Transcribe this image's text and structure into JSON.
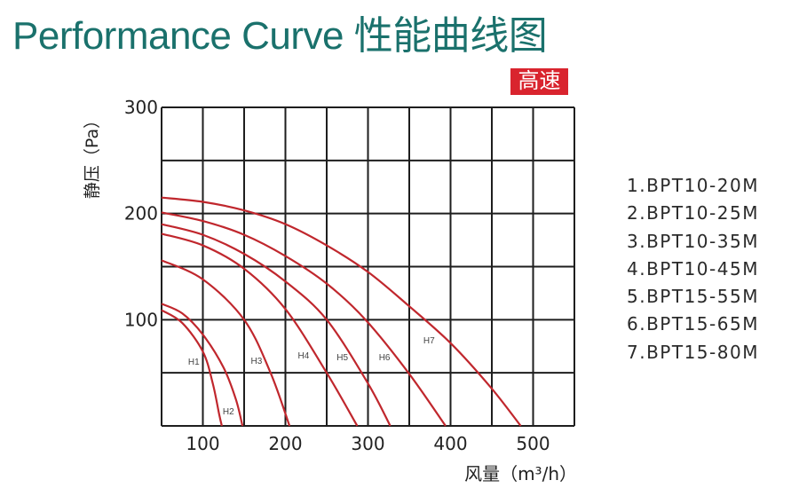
{
  "title": "Performance Curve 性能曲线图",
  "badge": "高速",
  "chart_data": {
    "type": "line",
    "title": "",
    "xlabel": "风量（m³/h）",
    "ylabel": "静压（Pa）",
    "xlim": [
      50,
      550
    ],
    "ylim": [
      0,
      300
    ],
    "x_ticks": [
      100,
      200,
      300,
      400,
      500
    ],
    "y_ticks": [
      100,
      200,
      300
    ],
    "grid": true,
    "grid_x_step": 50,
    "grid_y_step": 50,
    "line_color": "#c0272d",
    "series": [
      {
        "name": "H1",
        "label_at": [
          89,
          61
        ],
        "points": [
          [
            50,
            109
          ],
          [
            75,
            97
          ],
          [
            100,
            70
          ],
          [
            112,
            40
          ],
          [
            120,
            10
          ],
          [
            123,
            0
          ]
        ]
      },
      {
        "name": "H2",
        "label_at": [
          131,
          14
        ],
        "points": [
          [
            50,
            115
          ],
          [
            75,
            106
          ],
          [
            100,
            86
          ],
          [
            125,
            55
          ],
          [
            140,
            25
          ],
          [
            148,
            0
          ]
        ]
      },
      {
        "name": "H3",
        "label_at": [
          165,
          62
        ],
        "points": [
          [
            50,
            156
          ],
          [
            100,
            138
          ],
          [
            150,
            100
          ],
          [
            182,
            50
          ],
          [
            205,
            0
          ]
        ]
      },
      {
        "name": "H4",
        "label_at": [
          222,
          67
        ],
        "points": [
          [
            50,
            181
          ],
          [
            100,
            170
          ],
          [
            150,
            148
          ],
          [
            200,
            110
          ],
          [
            250,
            50
          ],
          [
            287,
            0
          ]
        ]
      },
      {
        "name": "H5",
        "label_at": [
          269,
          65
        ],
        "points": [
          [
            50,
            190
          ],
          [
            100,
            180
          ],
          [
            150,
            162
          ],
          [
            200,
            136
          ],
          [
            250,
            100
          ],
          [
            300,
            40
          ],
          [
            327,
            0
          ]
        ]
      },
      {
        "name": "H6",
        "label_at": [
          320,
          65
        ],
        "points": [
          [
            50,
            201
          ],
          [
            100,
            193
          ],
          [
            150,
            180
          ],
          [
            200,
            160
          ],
          [
            250,
            134
          ],
          [
            297,
            100
          ],
          [
            349,
            50
          ],
          [
            394,
            0
          ]
        ]
      },
      {
        "name": "H7",
        "label_at": [
          374,
          81
        ],
        "points": [
          [
            50,
            215
          ],
          [
            100,
            211
          ],
          [
            150,
            203
          ],
          [
            200,
            190
          ],
          [
            250,
            170
          ],
          [
            300,
            145
          ],
          [
            348,
            114
          ],
          [
            400,
            78
          ],
          [
            449,
            36
          ],
          [
            485,
            0
          ]
        ]
      }
    ]
  },
  "legend": [
    "1.BPT10-20M",
    "2.BPT10-25M",
    "3.BPT10-35M",
    "4.BPT10-45M",
    "5.BPT15-55M",
    "6.BPT15-65M",
    "7.BPT15-80M"
  ]
}
